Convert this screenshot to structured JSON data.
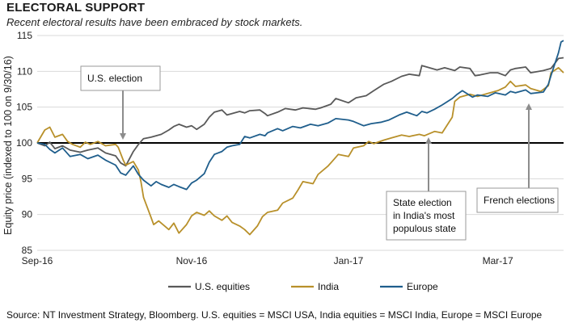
{
  "title": "ELECTORAL SUPPORT",
  "subtitle": "Recent electoral results have been embraced by stock markets.",
  "source": "Source: NT Investment Strategy, Bloomberg. U.S. equities = MSCI USA, India equities = MSCI India, Europe = MSCI Europe",
  "chart_data": {
    "type": "line",
    "ylabel": "Equity price (indexed to 100 on 9/30/16)",
    "ylim": [
      85,
      115
    ],
    "yticks": [
      85,
      90,
      95,
      100,
      105,
      110,
      115
    ],
    "xlim": [
      "2016-09-30",
      "2017-04-26"
    ],
    "xticks": [
      {
        "date": "2016-09-30",
        "label": "Sep-16"
      },
      {
        "date": "2016-11-30",
        "label": "Nov-16"
      },
      {
        "date": "2017-01-31",
        "label": "Jan-17"
      },
      {
        "date": "2017-03-31",
        "label": "Mar-17"
      }
    ],
    "grid": "horizontal",
    "legend": "bottom",
    "reference_line": 100,
    "series": [
      {
        "name": "U.S. equities",
        "color": "#595959",
        "points": [
          [
            "2016-09-30",
            100
          ],
          [
            "2016-10-03",
            99.6
          ],
          [
            "2016-10-05",
            100.1
          ],
          [
            "2016-10-07",
            99.2
          ],
          [
            "2016-10-10",
            99.6
          ],
          [
            "2016-10-13",
            99.0
          ],
          [
            "2016-10-17",
            98.7
          ],
          [
            "2016-10-20",
            99.0
          ],
          [
            "2016-10-24",
            99.3
          ],
          [
            "2016-10-27",
            98.6
          ],
          [
            "2016-10-31",
            98.2
          ],
          [
            "2016-11-02",
            97.2
          ],
          [
            "2016-11-04",
            96.8
          ],
          [
            "2016-11-07",
            98.8
          ],
          [
            "2016-11-09",
            99.8
          ],
          [
            "2016-11-11",
            100.6
          ],
          [
            "2016-11-14",
            100.8
          ],
          [
            "2016-11-16",
            101.0
          ],
          [
            "2016-11-18",
            101.2
          ],
          [
            "2016-11-21",
            101.8
          ],
          [
            "2016-11-23",
            102.3
          ],
          [
            "2016-11-25",
            102.6
          ],
          [
            "2016-11-28",
            102.2
          ],
          [
            "2016-11-30",
            102.4
          ],
          [
            "2016-12-02",
            101.9
          ],
          [
            "2016-12-05",
            102.6
          ],
          [
            "2016-12-07",
            103.6
          ],
          [
            "2016-12-09",
            104.3
          ],
          [
            "2016-12-12",
            104.6
          ],
          [
            "2016-12-14",
            103.9
          ],
          [
            "2016-12-16",
            104.1
          ],
          [
            "2016-12-19",
            104.4
          ],
          [
            "2016-12-21",
            104.2
          ],
          [
            "2016-12-23",
            104.5
          ],
          [
            "2016-12-27",
            104.6
          ],
          [
            "2016-12-29",
            104.1
          ],
          [
            "2016-12-30",
            103.8
          ],
          [
            "2017-01-03",
            104.3
          ],
          [
            "2017-01-06",
            104.8
          ],
          [
            "2017-01-10",
            104.6
          ],
          [
            "2017-01-13",
            104.9
          ],
          [
            "2017-01-18",
            104.7
          ],
          [
            "2017-01-20",
            104.9
          ],
          [
            "2017-01-24",
            105.4
          ],
          [
            "2017-01-26",
            106.2
          ],
          [
            "2017-01-31",
            105.6
          ],
          [
            "2017-02-03",
            106.3
          ],
          [
            "2017-02-07",
            106.6
          ],
          [
            "2017-02-10",
            107.3
          ],
          [
            "2017-02-14",
            108.2
          ],
          [
            "2017-02-17",
            108.6
          ],
          [
            "2017-02-21",
            109.3
          ],
          [
            "2017-02-24",
            109.6
          ],
          [
            "2017-02-28",
            109.4
          ],
          [
            "2017-03-01",
            110.8
          ],
          [
            "2017-03-03",
            110.6
          ],
          [
            "2017-03-07",
            110.2
          ],
          [
            "2017-03-10",
            110.5
          ],
          [
            "2017-03-14",
            110.1
          ],
          [
            "2017-03-16",
            110.6
          ],
          [
            "2017-03-20",
            110.4
          ],
          [
            "2017-03-22",
            109.4
          ],
          [
            "2017-03-24",
            109.5
          ],
          [
            "2017-03-28",
            109.8
          ],
          [
            "2017-03-31",
            109.8
          ],
          [
            "2017-04-03",
            109.4
          ],
          [
            "2017-04-05",
            110.2
          ],
          [
            "2017-04-07",
            110.4
          ],
          [
            "2017-04-11",
            110.6
          ],
          [
            "2017-04-13",
            109.8
          ],
          [
            "2017-04-18",
            110.1
          ],
          [
            "2017-04-21",
            110.4
          ],
          [
            "2017-04-24",
            111.8
          ],
          [
            "2017-04-26",
            111.9
          ]
        ]
      },
      {
        "name": "India",
        "color": "#b8902a",
        "points": [
          [
            "2016-09-30",
            100
          ],
          [
            "2016-10-03",
            101.8
          ],
          [
            "2016-10-05",
            102.2
          ],
          [
            "2016-10-07",
            100.8
          ],
          [
            "2016-10-10",
            101.2
          ],
          [
            "2016-10-12",
            100.2
          ],
          [
            "2016-10-14",
            99.8
          ],
          [
            "2016-10-17",
            99.4
          ],
          [
            "2016-10-19",
            100.1
          ],
          [
            "2016-10-21",
            99.8
          ],
          [
            "2016-10-24",
            100.2
          ],
          [
            "2016-10-27",
            99.6
          ],
          [
            "2016-10-31",
            99.8
          ],
          [
            "2016-11-01",
            99.4
          ],
          [
            "2016-11-03",
            97.6
          ],
          [
            "2016-11-04",
            96.9
          ],
          [
            "2016-11-07",
            97.4
          ],
          [
            "2016-11-09",
            96.2
          ],
          [
            "2016-11-10",
            94.6
          ],
          [
            "2016-11-11",
            92.4
          ],
          [
            "2016-11-14",
            89.6
          ],
          [
            "2016-11-15",
            88.6
          ],
          [
            "2016-11-17",
            89.1
          ],
          [
            "2016-11-21",
            87.9
          ],
          [
            "2016-11-23",
            88.8
          ],
          [
            "2016-11-25",
            87.4
          ],
          [
            "2016-11-28",
            88.6
          ],
          [
            "2016-11-30",
            89.8
          ],
          [
            "2016-12-02",
            90.3
          ],
          [
            "2016-12-05",
            89.9
          ],
          [
            "2016-12-07",
            90.5
          ],
          [
            "2016-12-09",
            89.8
          ],
          [
            "2016-12-12",
            89.2
          ],
          [
            "2016-12-14",
            89.8
          ],
          [
            "2016-12-16",
            88.9
          ],
          [
            "2016-12-19",
            88.4
          ],
          [
            "2016-12-21",
            87.9
          ],
          [
            "2016-12-23",
            87.2
          ],
          [
            "2016-12-26",
            88.4
          ],
          [
            "2016-12-28",
            89.7
          ],
          [
            "2016-12-30",
            90.3
          ],
          [
            "2017-01-03",
            90.6
          ],
          [
            "2017-01-05",
            91.6
          ],
          [
            "2017-01-09",
            92.3
          ],
          [
            "2017-01-11",
            93.4
          ],
          [
            "2017-01-13",
            94.6
          ],
          [
            "2017-01-17",
            94.3
          ],
          [
            "2017-01-19",
            95.6
          ],
          [
            "2017-01-23",
            96.8
          ],
          [
            "2017-01-25",
            97.6
          ],
          [
            "2017-01-27",
            98.4
          ],
          [
            "2017-01-31",
            98.1
          ],
          [
            "2017-02-02",
            99.3
          ],
          [
            "2017-02-06",
            99.6
          ],
          [
            "2017-02-08",
            100.2
          ],
          [
            "2017-02-10",
            99.9
          ],
          [
            "2017-02-14",
            100.4
          ],
          [
            "2017-02-17",
            100.7
          ],
          [
            "2017-02-21",
            101.1
          ],
          [
            "2017-02-24",
            100.9
          ],
          [
            "2017-02-28",
            101.2
          ],
          [
            "2017-03-02",
            101.0
          ],
          [
            "2017-03-06",
            101.6
          ],
          [
            "2017-03-09",
            101.4
          ],
          [
            "2017-03-13",
            103.6
          ],
          [
            "2017-03-14",
            105.8
          ],
          [
            "2017-03-16",
            106.4
          ],
          [
            "2017-03-20",
            106.8
          ],
          [
            "2017-03-23",
            106.5
          ],
          [
            "2017-03-27",
            106.9
          ],
          [
            "2017-03-31",
            107.3
          ],
          [
            "2017-04-03",
            107.8
          ],
          [
            "2017-04-05",
            108.6
          ],
          [
            "2017-04-07",
            107.9
          ],
          [
            "2017-04-11",
            108.1
          ],
          [
            "2017-04-13",
            107.6
          ],
          [
            "2017-04-17",
            107.2
          ],
          [
            "2017-04-20",
            108.0
          ],
          [
            "2017-04-21",
            109.8
          ],
          [
            "2017-04-24",
            110.5
          ],
          [
            "2017-04-26",
            109.8
          ]
        ]
      },
      {
        "name": "Europe",
        "color": "#1f5e8c",
        "points": [
          [
            "2016-09-30",
            100
          ],
          [
            "2016-10-03",
            99.8
          ],
          [
            "2016-10-05",
            99.1
          ],
          [
            "2016-10-07",
            98.6
          ],
          [
            "2016-10-10",
            99.3
          ],
          [
            "2016-10-13",
            98.1
          ],
          [
            "2016-10-17",
            98.4
          ],
          [
            "2016-10-20",
            97.8
          ],
          [
            "2016-10-24",
            98.3
          ],
          [
            "2016-10-27",
            97.6
          ],
          [
            "2016-10-31",
            96.9
          ],
          [
            "2016-11-02",
            95.8
          ],
          [
            "2016-11-04",
            95.5
          ],
          [
            "2016-11-07",
            96.8
          ],
          [
            "2016-11-09",
            95.6
          ],
          [
            "2016-11-11",
            94.8
          ],
          [
            "2016-11-14",
            94.0
          ],
          [
            "2016-11-16",
            94.6
          ],
          [
            "2016-11-18",
            94.2
          ],
          [
            "2016-11-21",
            93.8
          ],
          [
            "2016-11-23",
            94.2
          ],
          [
            "2016-11-25",
            93.9
          ],
          [
            "2016-11-28",
            93.5
          ],
          [
            "2016-11-30",
            94.4
          ],
          [
            "2016-12-02",
            94.8
          ],
          [
            "2016-12-05",
            95.7
          ],
          [
            "2016-12-07",
            97.3
          ],
          [
            "2016-12-09",
            98.4
          ],
          [
            "2016-12-12",
            98.8
          ],
          [
            "2016-12-14",
            99.4
          ],
          [
            "2016-12-16",
            99.6
          ],
          [
            "2016-12-19",
            99.8
          ],
          [
            "2016-12-21",
            100.9
          ],
          [
            "2016-12-23",
            100.7
          ],
          [
            "2016-12-27",
            101.2
          ],
          [
            "2016-12-29",
            101.0
          ],
          [
            "2016-12-30",
            101.4
          ],
          [
            "2017-01-03",
            102.0
          ],
          [
            "2017-01-05",
            101.7
          ],
          [
            "2017-01-09",
            102.3
          ],
          [
            "2017-01-12",
            102.1
          ],
          [
            "2017-01-16",
            102.6
          ],
          [
            "2017-01-19",
            102.4
          ],
          [
            "2017-01-23",
            102.8
          ],
          [
            "2017-01-26",
            103.4
          ],
          [
            "2017-01-31",
            103.2
          ],
          [
            "2017-02-02",
            103.0
          ],
          [
            "2017-02-06",
            102.4
          ],
          [
            "2017-02-09",
            102.7
          ],
          [
            "2017-02-13",
            102.9
          ],
          [
            "2017-02-16",
            103.2
          ],
          [
            "2017-02-20",
            103.9
          ],
          [
            "2017-02-23",
            104.3
          ],
          [
            "2017-02-27",
            103.8
          ],
          [
            "2017-03-01",
            104.4
          ],
          [
            "2017-03-03",
            104.2
          ],
          [
            "2017-03-06",
            104.7
          ],
          [
            "2017-03-09",
            105.3
          ],
          [
            "2017-03-13",
            106.2
          ],
          [
            "2017-03-15",
            106.8
          ],
          [
            "2017-03-17",
            107.3
          ],
          [
            "2017-03-21",
            106.4
          ],
          [
            "2017-03-23",
            106.7
          ],
          [
            "2017-03-27",
            106.5
          ],
          [
            "2017-03-30",
            107.0
          ],
          [
            "2017-04-03",
            106.7
          ],
          [
            "2017-04-05",
            107.2
          ],
          [
            "2017-04-07",
            107.0
          ],
          [
            "2017-04-11",
            107.4
          ],
          [
            "2017-04-13",
            106.9
          ],
          [
            "2017-04-18",
            107.1
          ],
          [
            "2017-04-20",
            108.2
          ],
          [
            "2017-04-21",
            109.4
          ],
          [
            "2017-04-24",
            112.6
          ],
          [
            "2017-04-25",
            114.1
          ],
          [
            "2017-04-26",
            114.3
          ]
        ]
      }
    ],
    "annotations": [
      {
        "lines": [
          "U.S. election"
        ],
        "anchor_date": "2016-11-08"
      },
      {
        "lines": [
          "State election",
          "in India's most",
          "populous state"
        ],
        "anchor_date": "2017-03-11"
      },
      {
        "lines": [
          "French elections"
        ],
        "anchor_date": "2017-04-23"
      }
    ]
  }
}
